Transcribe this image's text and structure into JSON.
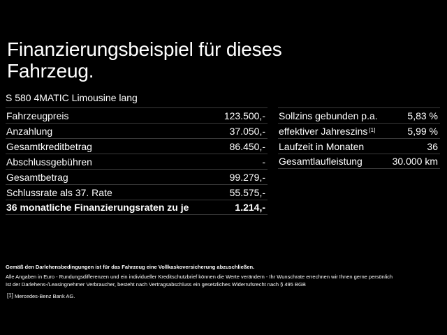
{
  "title": "Finanzierungsbeispiel für dieses Fahrzeug.",
  "subtitle": "S 580 4MATIC Limousine lang",
  "left_table": [
    {
      "label": "Fahrzeugpreis",
      "value": "123.500,-"
    },
    {
      "label": "Anzahlung",
      "value": "37.050,-"
    },
    {
      "label": "Gesamtkreditbetrag",
      "value": "86.450,-"
    },
    {
      "label": "Abschlussgebühren",
      "value": "-"
    },
    {
      "label": "Gesamtbetrag",
      "value": "99.279,-"
    },
    {
      "label": "Schlussrate als 37. Rate",
      "value": "55.575,-"
    },
    {
      "label": "36 monatliche Finanzierungsraten zu je",
      "value": "1.214,-"
    }
  ],
  "right_table": [
    {
      "label": "Sollzins gebunden p.a.",
      "value": "5,83 %"
    },
    {
      "label": "effektiver Jahreszins",
      "footnote_ref": "[1]",
      "value": "5,99 %"
    },
    {
      "label": "Laufzeit in Monaten",
      "value": "36"
    },
    {
      "label": "Gesamtlaufleistung",
      "value": "30.000 km"
    }
  ],
  "footer": {
    "notice": "Gemäß den Darlehensbedingungen ist für das Fahrzeug eine Vollkaskoversicherung abzuschließen.",
    "line1": "Alle Angaben in Euro - Rundungsdifferenzen und ein individueller Kreditschutzbrief können die Werte verändern - Ihr Wunschrate errechnen wir Ihnen gerne persönlich",
    "line2": "Ist der Darlehens-/Leasingnehmer Verbraucher, besteht nach Vertragsabschluss ein gesetzliches Widerrufsrecht nach § 495 BGB",
    "ref_marker": "[1]",
    "ref_text": "Mercedes-Benz Bank AG."
  },
  "colors": {
    "background": "#000000",
    "text": "#ffffff",
    "divider": "#3a3a3a"
  }
}
